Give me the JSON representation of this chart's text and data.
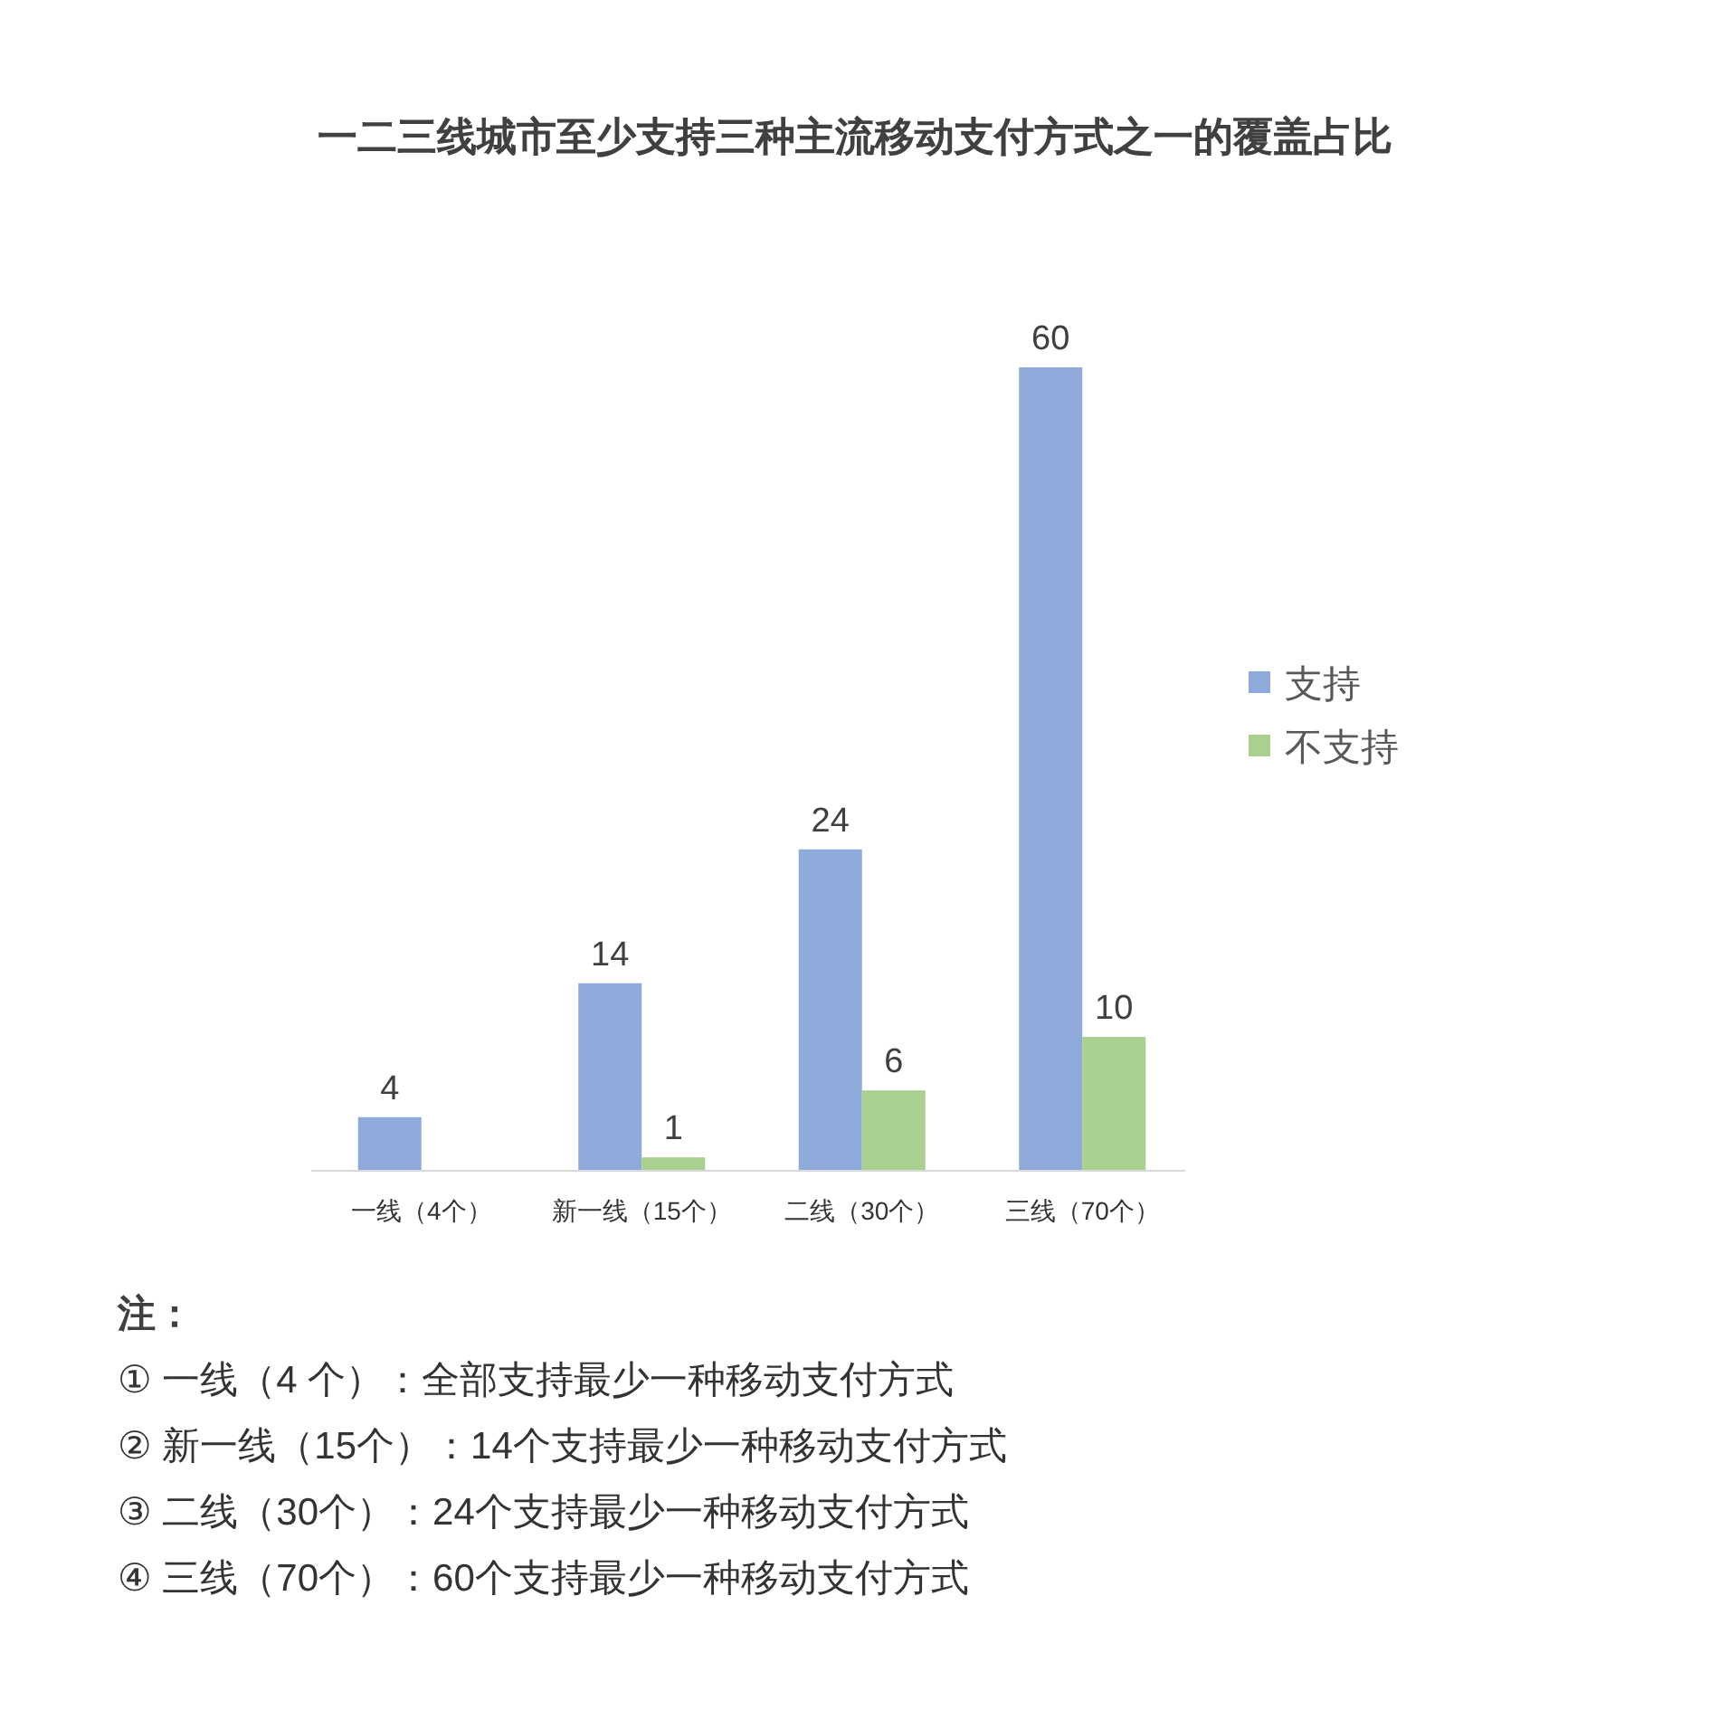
{
  "chart_data": {
    "type": "bar",
    "title": "一二三线城市至少支持三种主流移动支付方式之一的覆盖占比",
    "categories": [
      "一线（4个）",
      "新一线（15个）",
      "二线（30个）",
      "三线（70个）"
    ],
    "series": [
      {
        "name": "支持",
        "color": "#8eaadb",
        "values": [
          4,
          14,
          24,
          60
        ]
      },
      {
        "name": "不支持",
        "color": "#a9d08e",
        "values": [
          null,
          1,
          6,
          10
        ]
      }
    ],
    "data_labels": true,
    "legend": "right",
    "annotations": [
      "注：",
      "① 一线（4 个）：全部支持最少一种移动支付方式",
      "② 新一线（15个）：14个支持最少一种移动支付方式",
      "③ 二线（30个）：24个支持最少一种移动支付方式",
      "④ 三线（70个）：60个支持最少一种移动支付方式"
    ]
  }
}
